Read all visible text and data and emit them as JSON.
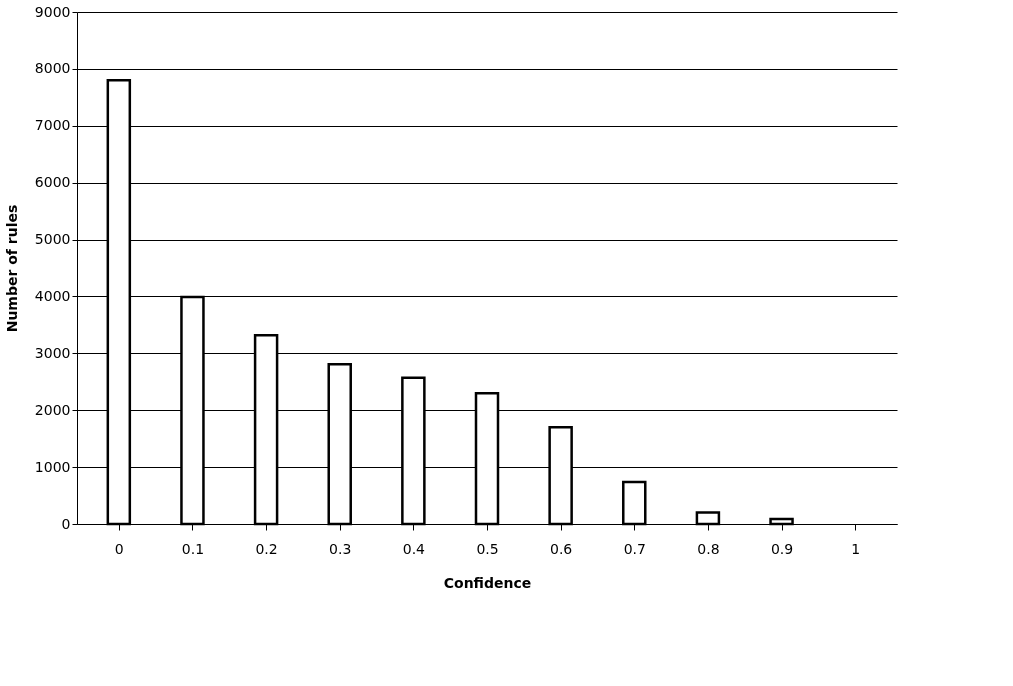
{
  "chart_data": {
    "type": "bar",
    "xlabel": "Confidence",
    "ylabel": "Number of rules",
    "categories": [
      "0",
      "0.1",
      "0.2",
      "0.3",
      "0.4",
      "0.5",
      "0.6",
      "0.7",
      "0.8",
      "0.9",
      "1"
    ],
    "series": [
      {
        "color": "#ffffff",
        "values": [
          7800,
          3990,
          3320,
          2810,
          2570,
          2300,
          1700,
          740,
          200,
          90,
          null
        ]
      }
    ],
    "ylim": [
      0,
      9000
    ],
    "yticks": [
      0,
      1000,
      2000,
      3000,
      4000,
      5000,
      6000,
      7000,
      8000,
      9000
    ],
    "grid": "y",
    "legend": false
  }
}
